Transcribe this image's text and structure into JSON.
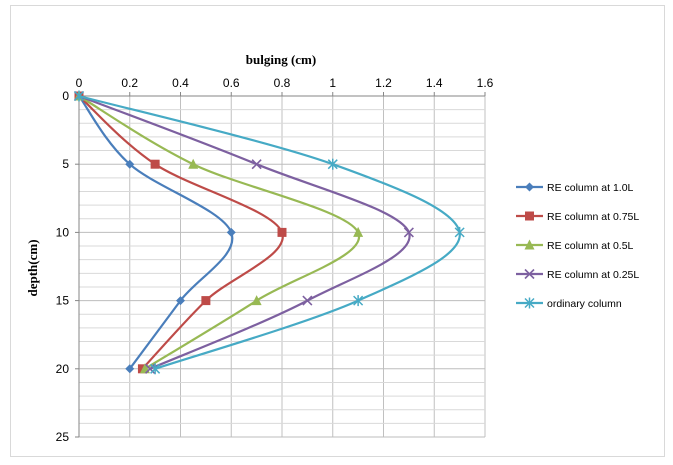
{
  "chart_data": {
    "type": "line",
    "title": "",
    "xlabel": "bulging (cm)",
    "ylabel": "depth(cm)",
    "x_axis_position": "top",
    "y_axis_inverted": true,
    "xlim": [
      0,
      1.6
    ],
    "ylim": [
      0,
      25
    ],
    "x_ticks": [
      "0",
      "0.2",
      "0.4",
      "0.6",
      "0.8",
      "1",
      "1.2",
      "1.4",
      "1.6"
    ],
    "y_ticks": [
      "0",
      "5",
      "10",
      "15",
      "20",
      "25"
    ],
    "grid": "on",
    "legend_position": "right",
    "smooth": true,
    "series": [
      {
        "name": "RE column at 1.0L",
        "marker": "diamond",
        "color": "#4a7ebb",
        "points": [
          {
            "x": 0,
            "depth": 0
          },
          {
            "x": 0.2,
            "depth": 5
          },
          {
            "x": 0.6,
            "depth": 10
          },
          {
            "x": 0.4,
            "depth": 15
          },
          {
            "x": 0.2,
            "depth": 20
          }
        ]
      },
      {
        "name": "RE column at 0.75L",
        "marker": "square",
        "color": "#be4b48",
        "points": [
          {
            "x": 0,
            "depth": 0
          },
          {
            "x": 0.3,
            "depth": 5
          },
          {
            "x": 0.8,
            "depth": 10
          },
          {
            "x": 0.5,
            "depth": 15
          },
          {
            "x": 0.25,
            "depth": 20
          }
        ]
      },
      {
        "name": "RE column at 0.5L",
        "marker": "triangle",
        "color": "#98b954",
        "points": [
          {
            "x": 0,
            "depth": 0
          },
          {
            "x": 0.45,
            "depth": 5
          },
          {
            "x": 1.1,
            "depth": 10
          },
          {
            "x": 0.7,
            "depth": 15
          },
          {
            "x": 0.26,
            "depth": 20
          }
        ]
      },
      {
        "name": "RE column at 0.25L",
        "marker": "x",
        "color": "#7d60a0",
        "points": [
          {
            "x": 0,
            "depth": 0
          },
          {
            "x": 0.7,
            "depth": 5
          },
          {
            "x": 1.3,
            "depth": 10
          },
          {
            "x": 0.9,
            "depth": 15
          },
          {
            "x": 0.28,
            "depth": 20
          }
        ]
      },
      {
        "name": "ordinary column",
        "marker": "star",
        "color": "#46aac5",
        "points": [
          {
            "x": 0,
            "depth": 0
          },
          {
            "x": 1.0,
            "depth": 5
          },
          {
            "x": 1.5,
            "depth": 10
          },
          {
            "x": 1.1,
            "depth": 15
          },
          {
            "x": 0.3,
            "depth": 20
          }
        ]
      }
    ]
  }
}
